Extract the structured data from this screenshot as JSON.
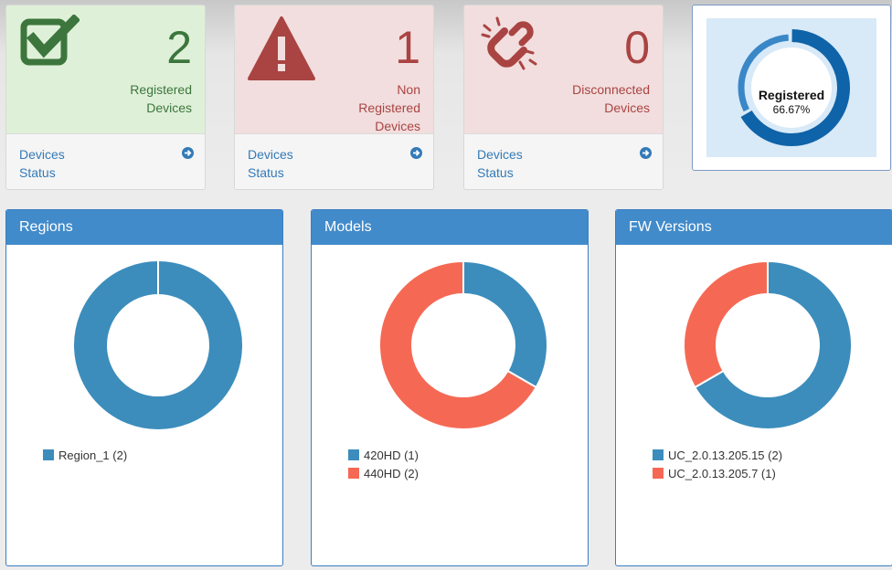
{
  "colors": {
    "blue": "#3c8dbc",
    "coral": "#f56954",
    "green": "#3c763d",
    "red": "#a94442",
    "link": "#337ab7",
    "ring_dark": "#0f63a8",
    "ring_light": "#3a87c7"
  },
  "cards": [
    {
      "count": "2",
      "line1": "Registered",
      "line2": "Devices",
      "line3": "",
      "link1": "Devices",
      "link2": "Status",
      "icon": "check-square-icon"
    },
    {
      "count": "1",
      "line1": "Non",
      "line2": "Registered",
      "line3": "Devices",
      "link1": "Devices",
      "link2": "Status",
      "icon": "warning-triangle-icon"
    },
    {
      "count": "0",
      "line1": "Disconnected",
      "line2": "Devices",
      "line3": "",
      "link1": "Devices",
      "link2": "Status",
      "icon": "broken-link-icon"
    }
  ],
  "ring": {
    "label": "Registered",
    "percent_text": "66.67%",
    "value": 0.6667
  },
  "panels": [
    {
      "title": "Regions",
      "legend": [
        "Region_1 (2)"
      ]
    },
    {
      "title": "Models",
      "legend": [
        "420HD (1)",
        "440HD (2)"
      ]
    },
    {
      "title": "FW Versions",
      "legend": [
        "UC_2.0.13.205.15 (2)",
        "UC_2.0.13.205.7 (1)"
      ]
    }
  ],
  "chart_data": [
    {
      "type": "pie",
      "title": "Regions",
      "categories": [
        "Region_1"
      ],
      "values": [
        2
      ],
      "colors": [
        "#3c8dbc"
      ]
    },
    {
      "type": "pie",
      "title": "Models",
      "categories": [
        "420HD",
        "440HD"
      ],
      "values": [
        1,
        2
      ],
      "colors": [
        "#3c8dbc",
        "#f56954"
      ]
    },
    {
      "type": "pie",
      "title": "FW Versions",
      "categories": [
        "UC_2.0.13.205.15",
        "UC_2.0.13.205.7"
      ],
      "values": [
        2,
        1
      ],
      "colors": [
        "#3c8dbc",
        "#f56954"
      ]
    }
  ]
}
